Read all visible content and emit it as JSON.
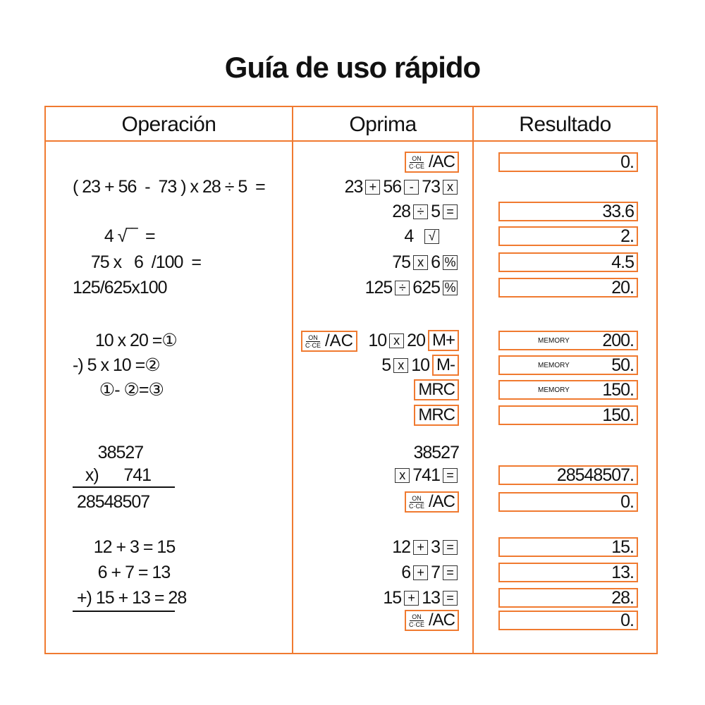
{
  "title": "Guía de uso rápido",
  "headers": {
    "operation": "Operación",
    "press": "Oprima",
    "result": "Resultado"
  },
  "colors": {
    "accent": "#f07a30"
  },
  "memory_label": "MEMORY",
  "onac": {
    "top": "ON",
    "bottom": "C·CE",
    "suffix": "/AC"
  },
  "rows": [
    {
      "op": "",
      "press": [
        [
          "onac"
        ]
      ],
      "result": "0."
    },
    {
      "op": "( 23 + 56  -  73 ) x 28 ÷ 5  =",
      "press": [
        [
          "t",
          "23"
        ],
        [
          "k",
          "+"
        ],
        [
          "t",
          "56"
        ],
        [
          "k",
          "-"
        ],
        [
          "t",
          "73"
        ],
        [
          "k",
          "x"
        ]
      ],
      "result": ""
    },
    {
      "op": "",
      "press": [
        [
          "t",
          "28"
        ],
        [
          "k",
          "÷"
        ],
        [
          "t",
          "5"
        ],
        [
          "k",
          "="
        ]
      ],
      "result": "33.6"
    },
    {
      "op": "   4 √‾‾  =",
      "press": [
        [
          "t",
          "4  "
        ],
        [
          "k",
          "√"
        ],
        [
          "t",
          "    "
        ]
      ],
      "result": "2."
    },
    {
      "op": "  75 x   6  /100  =",
      "press": [
        [
          "t",
          "75"
        ],
        [
          "k",
          "x"
        ],
        [
          "t",
          "6"
        ],
        [
          "k",
          "%"
        ]
      ],
      "result": "4.5"
    },
    {
      "op": "125/625x100",
      "press": [
        [
          "t",
          "125"
        ],
        [
          "k",
          "÷"
        ],
        [
          "t",
          "625"
        ],
        [
          "k",
          "%"
        ]
      ],
      "result": "20."
    },
    {
      "op": "   10 x 20 =①",
      "press": [
        [
          "t",
          "10"
        ],
        [
          "k",
          "x"
        ],
        [
          "t",
          "20"
        ],
        [
          "o",
          "M+"
        ]
      ],
      "result": "200.",
      "memory": true
    },
    {
      "op": "-) 5 x 10 =②",
      "press": [
        [
          "t",
          "5"
        ],
        [
          "k",
          "x"
        ],
        [
          "t",
          "10"
        ],
        [
          "o",
          "M-"
        ]
      ],
      "result": "50.",
      "memory": true
    },
    {
      "op": "    ①- ②=③",
      "press": [
        [
          "o",
          "MRC"
        ]
      ],
      "result": "150.",
      "memory": true
    },
    {
      "op": "",
      "press": [
        [
          "o",
          "MRC"
        ]
      ],
      "result": "150."
    },
    {
      "op": "      38527",
      "press": [
        [
          "t",
          "38527"
        ]
      ],
      "result": ""
    },
    {
      "op": "   x)      741",
      "press": [
        [
          "k",
          "x"
        ],
        [
          "t",
          "741"
        ],
        [
          "k",
          "="
        ]
      ],
      "result": "28548507."
    },
    {
      "op": " 28548507",
      "press": [
        [
          "onac"
        ]
      ],
      "result": "0."
    },
    {
      "op": "     12 + 3 = 15",
      "press": [
        [
          "t",
          "12"
        ],
        [
          "k",
          "+"
        ],
        [
          "t",
          "3"
        ],
        [
          "k",
          "="
        ]
      ],
      "result": "15."
    },
    {
      "op": "      6 + 7 = 13",
      "press": [
        [
          "t",
          "6"
        ],
        [
          "k",
          "+"
        ],
        [
          "t",
          "7"
        ],
        [
          "k",
          "="
        ]
      ],
      "result": "13."
    },
    {
      "op": " +) 15 + 13 = 28",
      "press": [
        [
          "t",
          "15"
        ],
        [
          "k",
          "+"
        ],
        [
          "t",
          "13"
        ],
        [
          "k",
          "="
        ]
      ],
      "result": "28."
    },
    {
      "op": "",
      "press": [
        [
          "onac"
        ]
      ],
      "result": "0."
    }
  ]
}
